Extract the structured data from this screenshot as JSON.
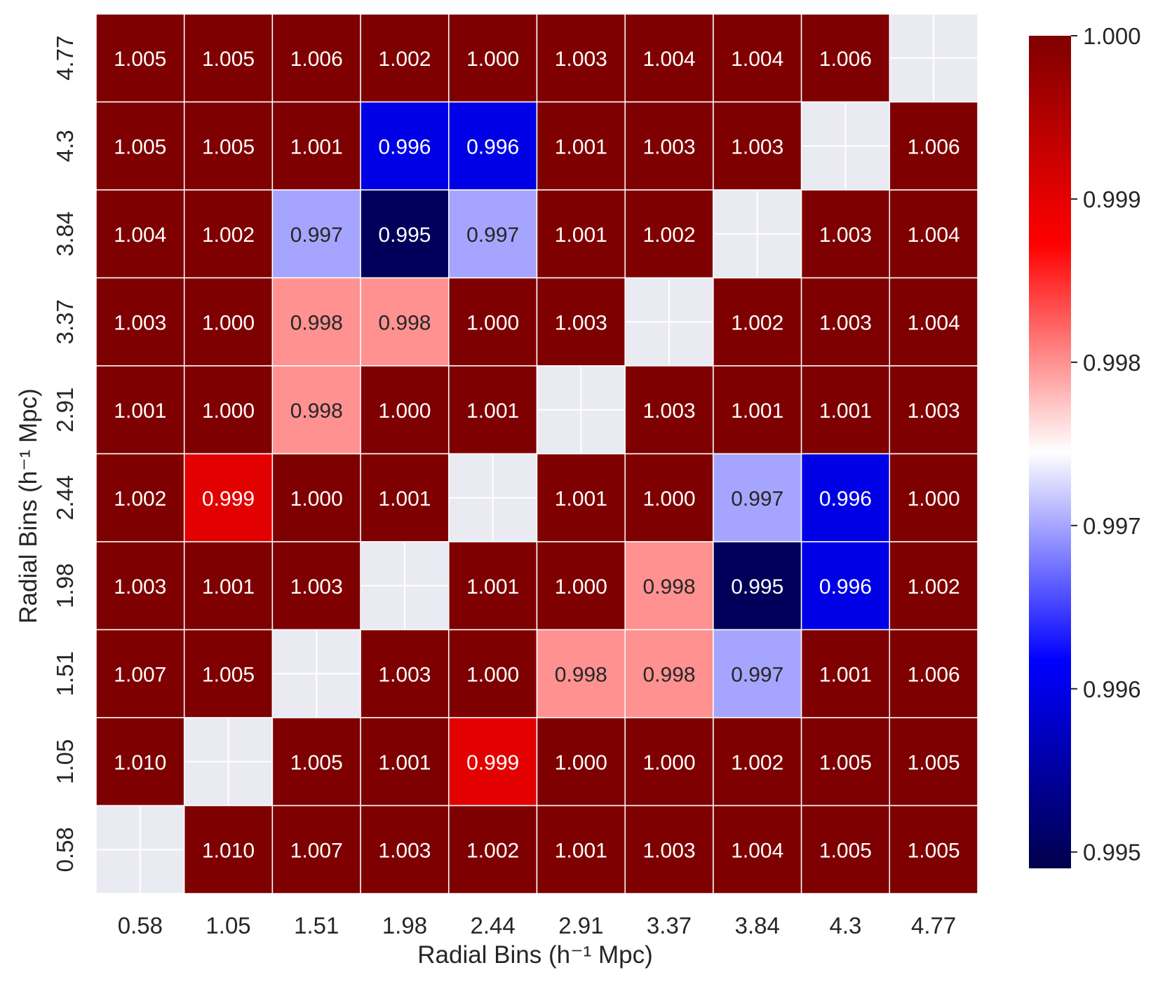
{
  "chart_data": {
    "type": "heatmap",
    "title": "",
    "xlabel": "Radial Bins (h⁻¹ Mpc)",
    "ylabel": "Radial Bins (h⁻¹ Mpc)",
    "x_categories": [
      "0.58",
      "1.05",
      "1.51",
      "1.98",
      "2.44",
      "2.91",
      "3.37",
      "3.84",
      "4.3",
      "4.77"
    ],
    "y_categories_top_to_bottom": [
      "4.77",
      "4.3",
      "3.84",
      "3.37",
      "2.91",
      "2.44",
      "1.98",
      "1.51",
      "1.05",
      "0.58"
    ],
    "values_top_to_bottom": [
      [
        1.005,
        1.005,
        1.006,
        1.002,
        1.0,
        1.003,
        1.004,
        1.004,
        1.006,
        null
      ],
      [
        1.005,
        1.005,
        1.001,
        0.996,
        0.996,
        1.001,
        1.003,
        1.003,
        null,
        1.006
      ],
      [
        1.004,
        1.002,
        0.997,
        0.995,
        0.997,
        1.001,
        1.002,
        null,
        1.003,
        1.004
      ],
      [
        1.003,
        1.0,
        0.998,
        0.998,
        1.0,
        1.003,
        null,
        1.002,
        1.003,
        1.004
      ],
      [
        1.001,
        1.0,
        0.998,
        1.0,
        1.001,
        null,
        1.003,
        1.001,
        1.001,
        1.003
      ],
      [
        1.002,
        0.999,
        1.0,
        1.001,
        null,
        1.001,
        1.0,
        0.997,
        0.996,
        1.0
      ],
      [
        1.003,
        1.001,
        1.003,
        null,
        1.001,
        1.0,
        0.998,
        0.995,
        0.996,
        1.002
      ],
      [
        1.007,
        1.005,
        null,
        1.003,
        1.0,
        0.998,
        0.998,
        0.997,
        1.001,
        1.006
      ],
      [
        1.01,
        null,
        1.005,
        1.001,
        0.999,
        1.0,
        1.0,
        1.002,
        1.005,
        1.005
      ],
      [
        null,
        1.01,
        1.007,
        1.003,
        1.002,
        1.001,
        1.003,
        1.004,
        1.005,
        1.005
      ]
    ],
    "colorbar": {
      "colormap": "seismic",
      "vmin": 0.9949,
      "vmax": 1.0,
      "ticks": [
        1.0,
        0.999,
        0.998,
        0.997,
        0.996,
        0.995
      ],
      "tick_labels": [
        "1.000",
        "0.999",
        "0.998",
        "0.997",
        "0.996",
        "0.995"
      ],
      "colors": {
        "low": "#00004c",
        "mid": "#ffffff",
        "high": "#7f0000"
      }
    },
    "masked_cell_color": "#eaeaf2",
    "grid": true
  }
}
